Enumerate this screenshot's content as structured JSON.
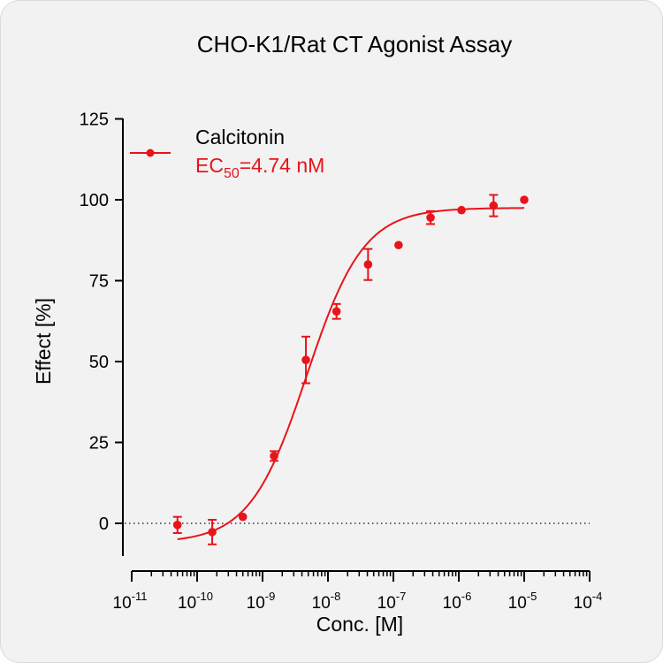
{
  "chart_data": {
    "type": "scatter",
    "title": "CHO-K1/Rat CT Agonist Assay",
    "xlabel": "Conc. [M]",
    "ylabel": "Effect  [%]",
    "x_scale": "log",
    "xlim": [
      1e-11,
      0.0001
    ],
    "ylim": [
      -10,
      125
    ],
    "x_ticks": [
      {
        "base": "10",
        "exp": "-11"
      },
      {
        "base": "10",
        "exp": "-10"
      },
      {
        "base": "10",
        "exp": "-9"
      },
      {
        "base": "10",
        "exp": "-8"
      },
      {
        "base": "10",
        "exp": "-7"
      },
      {
        "base": "10",
        "exp": "-6"
      },
      {
        "base": "10",
        "exp": "-5"
      },
      {
        "base": "10",
        "exp": "-4"
      }
    ],
    "y_ticks": [
      "0",
      "25",
      "50",
      "75",
      "100",
      "125"
    ],
    "reference_line": {
      "y": 0,
      "style": "dotted"
    },
    "series": [
      {
        "name": "Calcitonin",
        "color": "#e8141b",
        "ec50_prefix": "EC",
        "ec50_subscript": "50",
        "ec50_value": "=4.74 nM",
        "ec50_molar": 4.74e-09,
        "fit": {
          "model": "4PL",
          "bottom": -6,
          "top": 97.5,
          "hill": 1.0
        },
        "points": [
          {
            "x": 5e-11,
            "y": -0.5,
            "err": 2.5
          },
          {
            "x": 1.7e-10,
            "y": -2.7,
            "err": 3.8
          },
          {
            "x": 5e-10,
            "y": 2.0,
            "err": 0
          },
          {
            "x": 1.5e-09,
            "y": 20.8,
            "err": 1.5
          },
          {
            "x": 4.6e-09,
            "y": 50.5,
            "err": 7.2
          },
          {
            "x": 1.35e-08,
            "y": 65.5,
            "err": 2.3
          },
          {
            "x": 4.1e-08,
            "y": 80.0,
            "err": 4.8
          },
          {
            "x": 1.2e-07,
            "y": 86.0,
            "err": 0
          },
          {
            "x": 3.7e-07,
            "y": 94.5,
            "err": 2.0
          },
          {
            "x": 1.1e-06,
            "y": 96.8,
            "err": 0
          },
          {
            "x": 3.4e-06,
            "y": 98.2,
            "err": 3.3
          },
          {
            "x": 1e-05,
            "y": 100.0,
            "err": 0
          }
        ]
      }
    ],
    "legend_position": "top-left"
  }
}
